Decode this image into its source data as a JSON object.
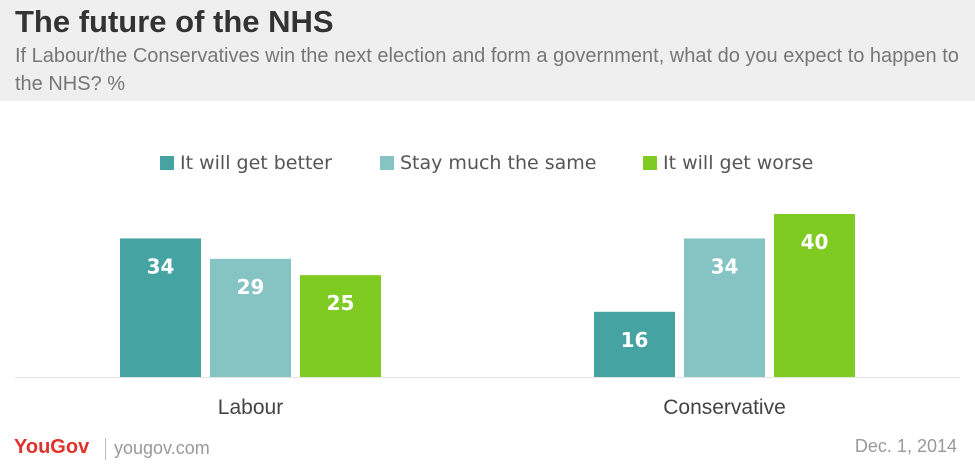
{
  "chart_data": {
    "type": "bar",
    "title": "The future of the NHS",
    "subtitle": "If Labour/the Conservatives win the next election and form a government, what do you expect to happen to the NHS? %",
    "categories": [
      "Labour",
      "Conservative"
    ],
    "series": [
      {
        "name": "It will get better",
        "values": [
          34,
          16
        ],
        "color": "#45a3a1"
      },
      {
        "name": "Stay much the same",
        "values": [
          29,
          34
        ],
        "color": "#86c3c3"
      },
      {
        "name": "It will get worse",
        "values": [
          25,
          40
        ],
        "color": "#80cb22"
      }
    ],
    "ylim": [
      0,
      40
    ],
    "grid": false,
    "legend_position": "top",
    "xlabel": "",
    "ylabel": ""
  },
  "footer": {
    "brand": "YouGov",
    "site": "yougov.com",
    "date": "Dec. 1, 2014"
  },
  "colors": {
    "header_bg": "#efefef",
    "brand": "#e0312b"
  }
}
